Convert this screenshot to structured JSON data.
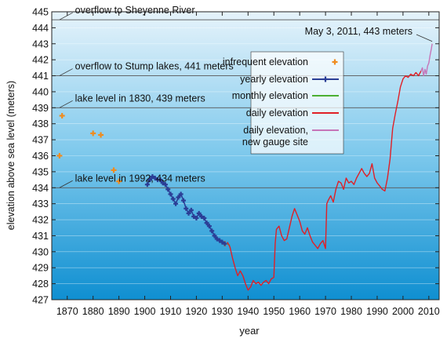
{
  "chart_data": {
    "type": "line",
    "xlabel": "year",
    "ylabel": "elevation above sea level (meters)",
    "xlim": [
      1864,
      2014
    ],
    "ylim": [
      427,
      445
    ],
    "x_ticks": [
      1870,
      1880,
      1890,
      1900,
      1910,
      1920,
      1930,
      1940,
      1950,
      1960,
      1970,
      1980,
      1990,
      2000,
      2010
    ],
    "y_ticks": [
      427,
      428,
      429,
      430,
      431,
      432,
      433,
      434,
      435,
      436,
      437,
      438,
      439,
      440,
      441,
      442,
      443,
      444,
      445
    ],
    "background": "blue vertical gradient, light at top, darker at bottom",
    "legend_placement": "upper right",
    "reference_lines": [
      {
        "y": 444.5,
        "label": "overflow to Sheyenne River"
      },
      {
        "y": 441,
        "label": "overflow to Stump lakes, 441 meters"
      },
      {
        "y": 439,
        "label": "lake level in 1830, 439 meters"
      },
      {
        "y": 434,
        "label": "lake level in 1992, 434 meters"
      }
    ],
    "annotation": {
      "text": "May 3, 2011, 443 meters",
      "x": 2011.3,
      "y": 443
    },
    "series": [
      {
        "name": "infrequent elevation",
        "color": "#f08c1e",
        "marker": "plus",
        "x": [
          1867,
          1868,
          1880,
          1883,
          1888,
          1890,
          1931
        ],
        "y": [
          436.0,
          438.5,
          437.4,
          437.3,
          435.1,
          434.4,
          430.5
        ]
      },
      {
        "name": "yearly elevation",
        "color": "#2b3e96",
        "marker": "plus",
        "x": [
          1901,
          1902,
          1903,
          1904,
          1905,
          1906,
          1907,
          1908,
          1909,
          1910,
          1911,
          1912,
          1913,
          1914,
          1915,
          1916,
          1917,
          1918,
          1919,
          1920,
          1921,
          1922,
          1923,
          1924,
          1925,
          1926,
          1927,
          1928,
          1929,
          1930,
          1931
        ],
        "y": [
          434.2,
          434.5,
          434.7,
          434.6,
          434.5,
          434.5,
          434.3,
          434.2,
          433.9,
          433.6,
          433.3,
          433.0,
          433.4,
          433.6,
          433.2,
          432.7,
          432.4,
          432.6,
          432.2,
          432.1,
          432.4,
          432.2,
          432.1,
          431.8,
          431.6,
          431.3,
          431.0,
          430.8,
          430.7,
          430.6,
          430.5
        ]
      },
      {
        "name": "monthly elevation",
        "color": "#4caf32",
        "x": [
          1932,
          1933
        ],
        "y": [
          430.5,
          430.4
        ]
      },
      {
        "name": "daily elevation",
        "color": "#e01f26",
        "x": [
          1932,
          1933,
          1934,
          1935,
          1936,
          1937,
          1938,
          1939,
          1940,
          1941,
          1942,
          1943,
          1944,
          1945,
          1946,
          1947,
          1948,
          1949,
          1950,
          1950.5,
          1951,
          1952,
          1953,
          1954,
          1955,
          1956,
          1957,
          1958,
          1959,
          1960,
          1961,
          1962,
          1963,
          1964,
          1965,
          1966,
          1967,
          1968,
          1969,
          1970,
          1970.5,
          1971,
          1972,
          1973,
          1974,
          1975,
          1976,
          1977,
          1978,
          1979,
          1980,
          1981,
          1982,
          1983,
          1984,
          1985,
          1986,
          1987,
          1988,
          1989,
          1990,
          1991,
          1992,
          1993,
          1994,
          1995,
          1996,
          1997,
          1998,
          1999,
          2000,
          2001,
          2002,
          2003,
          2004,
          2005,
          2006,
          2007
        ],
        "y": [
          430.6,
          430.3,
          429.6,
          429.0,
          428.5,
          428.8,
          428.5,
          428.0,
          427.6,
          427.8,
          428.2,
          428.0,
          428.1,
          427.9,
          428.1,
          428.2,
          428.0,
          428.3,
          428.4,
          430.5,
          431.4,
          431.6,
          431.0,
          430.7,
          430.8,
          431.5,
          432.2,
          432.7,
          432.3,
          431.9,
          431.3,
          431.1,
          431.5,
          431.0,
          430.6,
          430.4,
          430.2,
          430.5,
          430.7,
          430.2,
          433.0,
          433.2,
          433.5,
          433.1,
          433.9,
          434.4,
          434.3,
          433.9,
          434.6,
          434.3,
          434.4,
          434.2,
          434.6,
          434.9,
          435.2,
          434.9,
          434.7,
          434.9,
          435.5,
          434.6,
          434.3,
          434.1,
          433.9,
          433.8,
          434.6,
          435.8,
          437.7,
          438.6,
          439.4,
          440.3,
          440.8,
          441.0,
          440.9,
          441.1,
          441.0,
          441.2,
          441.0,
          441.3
        ]
      },
      {
        "name": "daily elevation, new gauge site",
        "color": "#c675b8",
        "x": [
          2007,
          2007.5,
          2008,
          2008.5,
          2009,
          2009.5,
          2010,
          2010.5,
          2011,
          2011.3
        ],
        "y": [
          441.3,
          441.5,
          441.0,
          441.4,
          441.1,
          441.6,
          441.8,
          442.3,
          442.7,
          443.0
        ]
      }
    ]
  }
}
